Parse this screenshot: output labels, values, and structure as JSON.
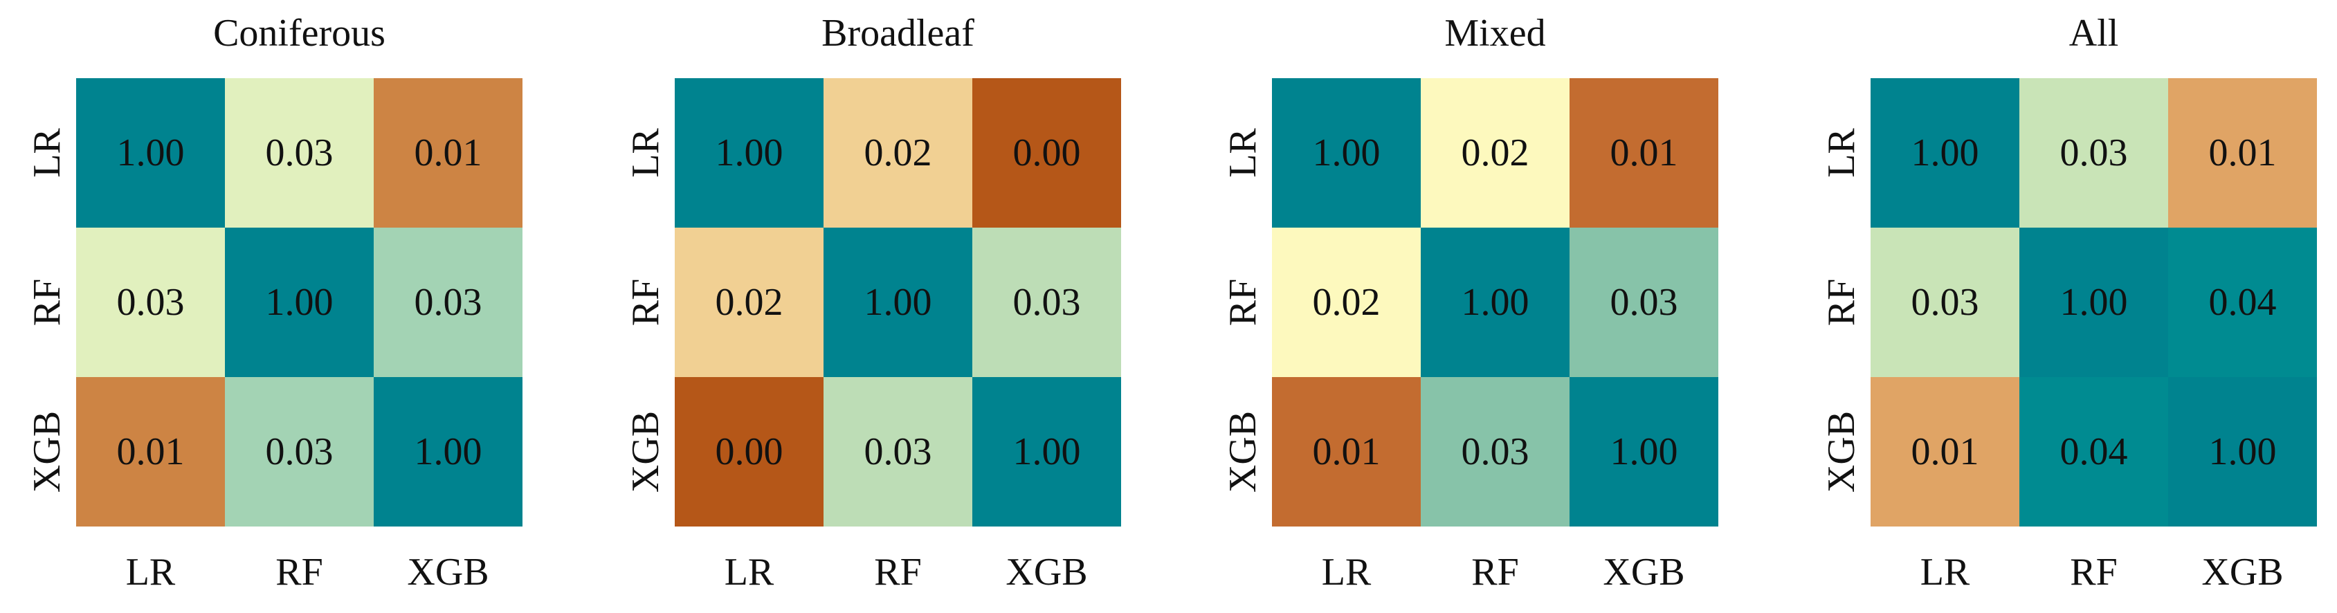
{
  "chart_data": [
    {
      "type": "heatmap",
      "title": "Coniferous",
      "x_categories": [
        "LR",
        "RF",
        "XGB"
      ],
      "y_categories": [
        "LR",
        "RF",
        "XGB"
      ],
      "values": [
        [
          1.0,
          0.03,
          0.01
        ],
        [
          0.03,
          1.0,
          0.03
        ],
        [
          0.01,
          0.03,
          1.0
        ]
      ],
      "labels": [
        [
          "1.00",
          "0.03",
          "0.01"
        ],
        [
          "0.03",
          "1.00",
          "0.03"
        ],
        [
          "0.01",
          "0.03",
          "1.00"
        ]
      ],
      "colors": [
        [
          "#00838F",
          "#E1F0BE",
          "#CD8444"
        ],
        [
          "#E1F0BE",
          "#00838F",
          "#A3D3B4"
        ],
        [
          "#CD8444",
          "#A3D3B4",
          "#00838F"
        ]
      ]
    },
    {
      "type": "heatmap",
      "title": "Broadleaf",
      "x_categories": [
        "LR",
        "RF",
        "XGB"
      ],
      "y_categories": [
        "LR",
        "RF",
        "XGB"
      ],
      "values": [
        [
          1.0,
          0.02,
          0.0
        ],
        [
          0.02,
          1.0,
          0.03
        ],
        [
          0.0,
          0.03,
          1.0
        ]
      ],
      "labels": [
        [
          "1.00",
          "0.02",
          "0.00"
        ],
        [
          "0.02",
          "1.00",
          "0.03"
        ],
        [
          "0.00",
          "0.03",
          "1.00"
        ]
      ],
      "colors": [
        [
          "#00838F",
          "#F1D093",
          "#B55718"
        ],
        [
          "#F1D093",
          "#00838F",
          "#BDDDB6"
        ],
        [
          "#B55718",
          "#BDDDB6",
          "#00838F"
        ]
      ]
    },
    {
      "type": "heatmap",
      "title": "Mixed",
      "x_categories": [
        "LR",
        "RF",
        "XGB"
      ],
      "y_categories": [
        "LR",
        "RF",
        "XGB"
      ],
      "values": [
        [
          1.0,
          0.02,
          0.01
        ],
        [
          0.02,
          1.0,
          0.03
        ],
        [
          0.01,
          0.03,
          1.0
        ]
      ],
      "labels": [
        [
          "1.00",
          "0.02",
          "0.01"
        ],
        [
          "0.02",
          "1.00",
          "0.03"
        ],
        [
          "0.01",
          "0.03",
          "1.00"
        ]
      ],
      "colors": [
        [
          "#00838F",
          "#FDF9BE",
          "#C36C30"
        ],
        [
          "#FDF9BE",
          "#00838F",
          "#87C3A9"
        ],
        [
          "#C36C30",
          "#87C3A9",
          "#00838F"
        ]
      ]
    },
    {
      "type": "heatmap",
      "title": "All",
      "x_categories": [
        "LR",
        "RF",
        "XGB"
      ],
      "y_categories": [
        "LR",
        "RF",
        "XGB"
      ],
      "values": [
        [
          1.0,
          0.03,
          0.01
        ],
        [
          0.03,
          1.0,
          0.04
        ],
        [
          0.01,
          0.04,
          1.0
        ]
      ],
      "labels": [
        [
          "1.00",
          "0.03",
          "0.01"
        ],
        [
          "0.03",
          "1.00",
          "0.04"
        ],
        [
          "0.01",
          "0.04",
          "1.00"
        ]
      ],
      "colors": [
        [
          "#00838F",
          "#C9E4B7",
          "#E0A465"
        ],
        [
          "#C9E4B7",
          "#00838F",
          "#008B91"
        ],
        [
          "#E0A465",
          "#008B91",
          "#00838F"
        ]
      ]
    }
  ]
}
